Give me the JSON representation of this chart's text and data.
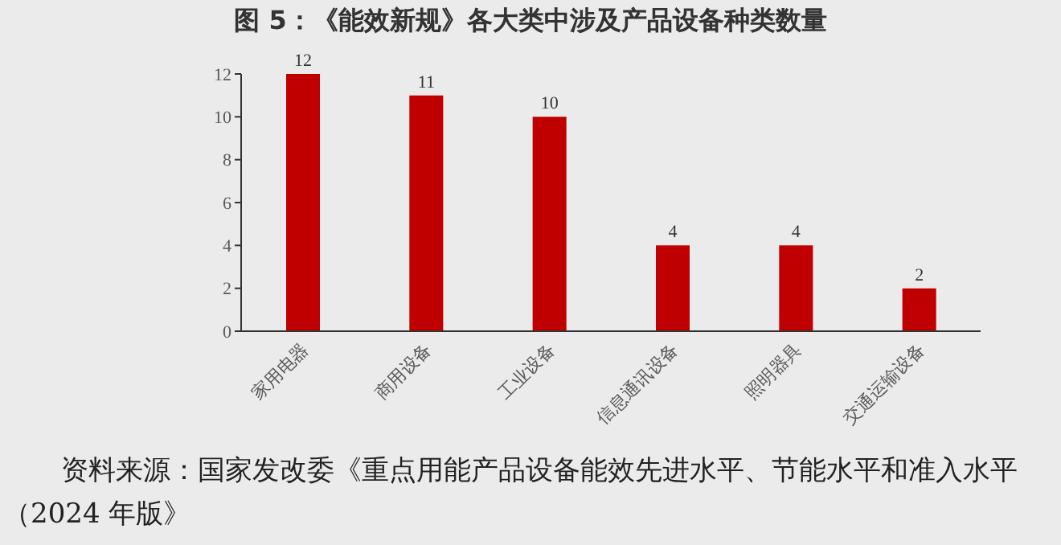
{
  "chart_data": {
    "type": "bar",
    "title": "图 5：《能效新规》各大类中涉及产品设备种类数量",
    "categories": [
      "家用电器",
      "商用设备",
      "工业设备",
      "信息通讯设备",
      "照明器具",
      "交通运输设备"
    ],
    "values": [
      12,
      11,
      10,
      4,
      4,
      2
    ],
    "color": "#c00000",
    "ylim": [
      0,
      12
    ],
    "yticks": [
      0,
      2,
      4,
      6,
      8,
      10,
      12
    ],
    "grid": false,
    "data_labels": true,
    "annotations": [
      "资料来源：国家发改委《重点用能产品设备能效先进水平、节能水平和准入水平（2024 年版》"
    ]
  }
}
